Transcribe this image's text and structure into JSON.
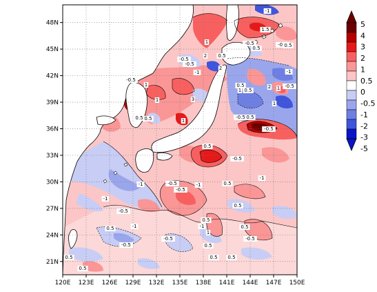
{
  "map": {
    "type": "filled-contour",
    "region": {
      "lon": [
        120,
        150
      ],
      "lat": [
        19.5,
        50
      ]
    },
    "x_ticks": [
      "120E",
      "123E",
      "126E",
      "129E",
      "132E",
      "135E",
      "138E",
      "141E",
      "144E",
      "147E",
      "150E"
    ],
    "y_ticks": [
      "21N",
      "24N",
      "27N",
      "30N",
      "33N",
      "36N",
      "39N",
      "42N",
      "45N",
      "48N"
    ],
    "gridlines": "dotted",
    "colorbar": {
      "position": "right",
      "labels": [
        "5",
        "4",
        "3",
        "2",
        "1",
        "0.5",
        "0",
        "-0.5",
        "-1",
        "-2",
        "-3",
        "-5"
      ],
      "colors": [
        "#6b0000",
        "#b40000",
        "#e61919",
        "#f86060",
        "#fa9696",
        "#fcc6c6",
        "#ffffff",
        "#c8cdf5",
        "#9aa6ec",
        "#6e7fe4",
        "#3f55dc",
        "#0a14c8"
      ]
    },
    "contour_labels": [
      "-1",
      "1.5",
      "-0.5",
      "0.5",
      "-0.5",
      "0.5",
      "1",
      "2",
      "-0.5",
      "-0.5",
      "0.5",
      "-1",
      "2",
      "3",
      "1",
      "0.5",
      "0.5",
      "-1",
      "-0.5",
      "2",
      "1",
      "1",
      "-0.5",
      "0.5",
      "-0.5",
      "-0.5",
      "1",
      "1",
      "0.5",
      "0.5",
      "1",
      "0.5",
      "-1",
      "-0.5",
      "-1",
      "-1",
      "-0.5",
      "-0.5",
      "0.5",
      "0.5",
      "-1",
      "-1",
      "0.5",
      "0.5",
      "1",
      "0.5",
      "0.5",
      "0.5",
      "0.5",
      "0.5",
      "0.5",
      "-0.5",
      "-0.5",
      "-0.5",
      "-0.5",
      "-1"
    ]
  }
}
